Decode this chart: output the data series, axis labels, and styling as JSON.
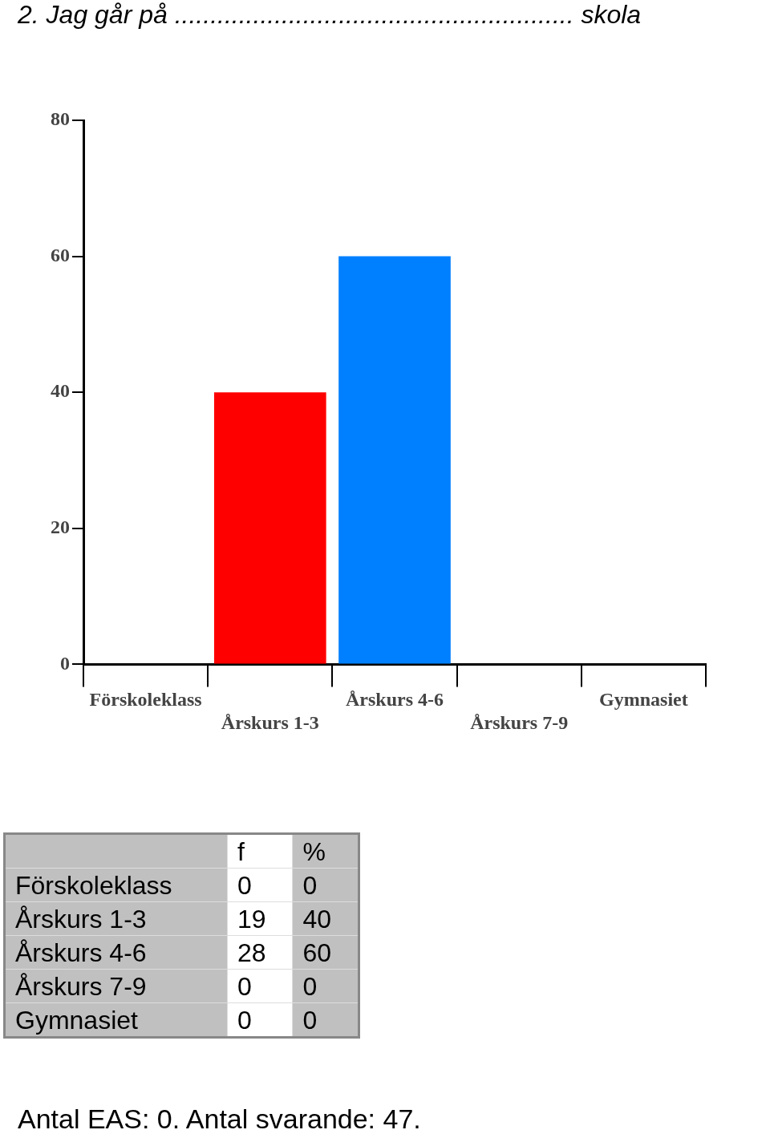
{
  "chart_data": {
    "type": "bar",
    "title": "2. Jag går på ........................................................ skola",
    "categories": [
      "Förskoleklass",
      "Årskurs 1-3",
      "Årskurs 4-6",
      "Årskurs 7-9",
      "Gymnasiet"
    ],
    "values": [
      0,
      40,
      60,
      0,
      0
    ],
    "colors": [
      "#ff0000",
      "#ff0000",
      "#0080ff",
      "#0080ff",
      "#0080ff"
    ],
    "ylim": [
      0,
      80
    ],
    "yticks": [
      0,
      20,
      40,
      60,
      80
    ],
    "grid": false,
    "legend": false,
    "annotations": [
      "f",
      "%",
      "0",
      "19",
      "28",
      "0",
      "0",
      "0",
      "40",
      "60",
      "0",
      "0",
      "Antal EAS: 0. Antal svarande:  47."
    ]
  }
}
